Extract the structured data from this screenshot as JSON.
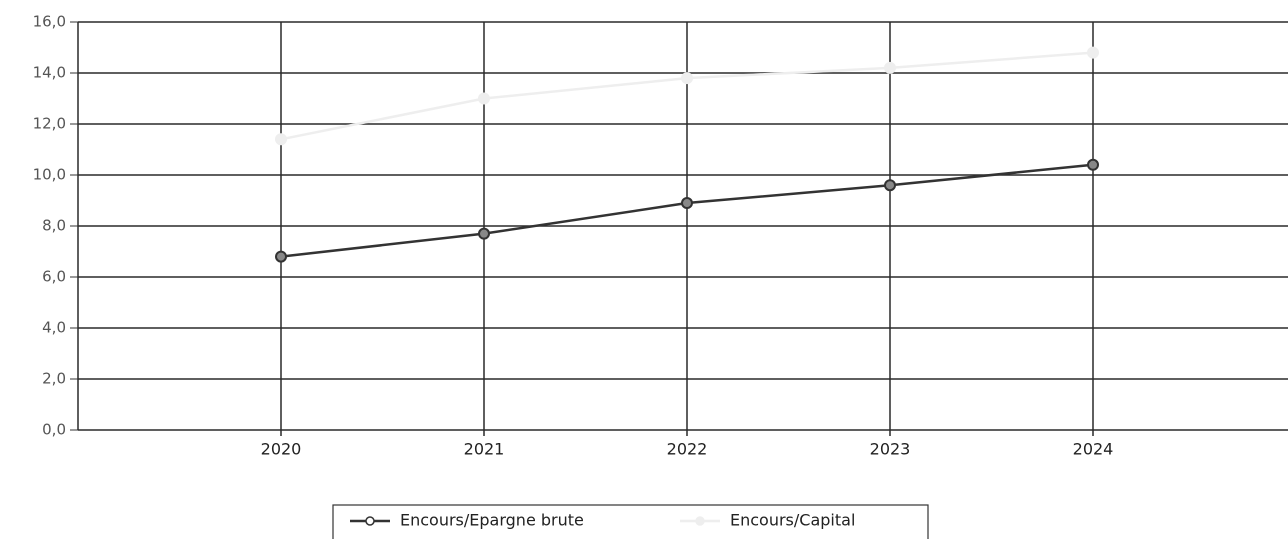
{
  "chart_data": {
    "type": "line",
    "categories": [
      "2020",
      "2021",
      "2022",
      "2023",
      "2024"
    ],
    "series": [
      {
        "name": "Encours/Epargne brute",
        "color": "#333333",
        "values": [
          6.8,
          7.7,
          8.9,
          9.6,
          10.4
        ]
      },
      {
        "name": "Encours/Capital",
        "color": "#eeeeee",
        "values": [
          11.4,
          13.0,
          13.8,
          14.2,
          14.8
        ]
      }
    ],
    "ylim": [
      0,
      16
    ],
    "yticks": [
      {
        "value": 0,
        "label": "0,0"
      },
      {
        "value": 2,
        "label": "2,0"
      },
      {
        "value": 4,
        "label": "4,0"
      },
      {
        "value": 6,
        "label": "6,0"
      },
      {
        "value": 8,
        "label": "8,0"
      },
      {
        "value": 10,
        "label": "10,0"
      },
      {
        "value": 12,
        "label": "12,0"
      },
      {
        "value": 14,
        "label": "14,0"
      },
      {
        "value": 16,
        "label": "16,0"
      }
    ],
    "grid": true,
    "legend": "bottom"
  }
}
